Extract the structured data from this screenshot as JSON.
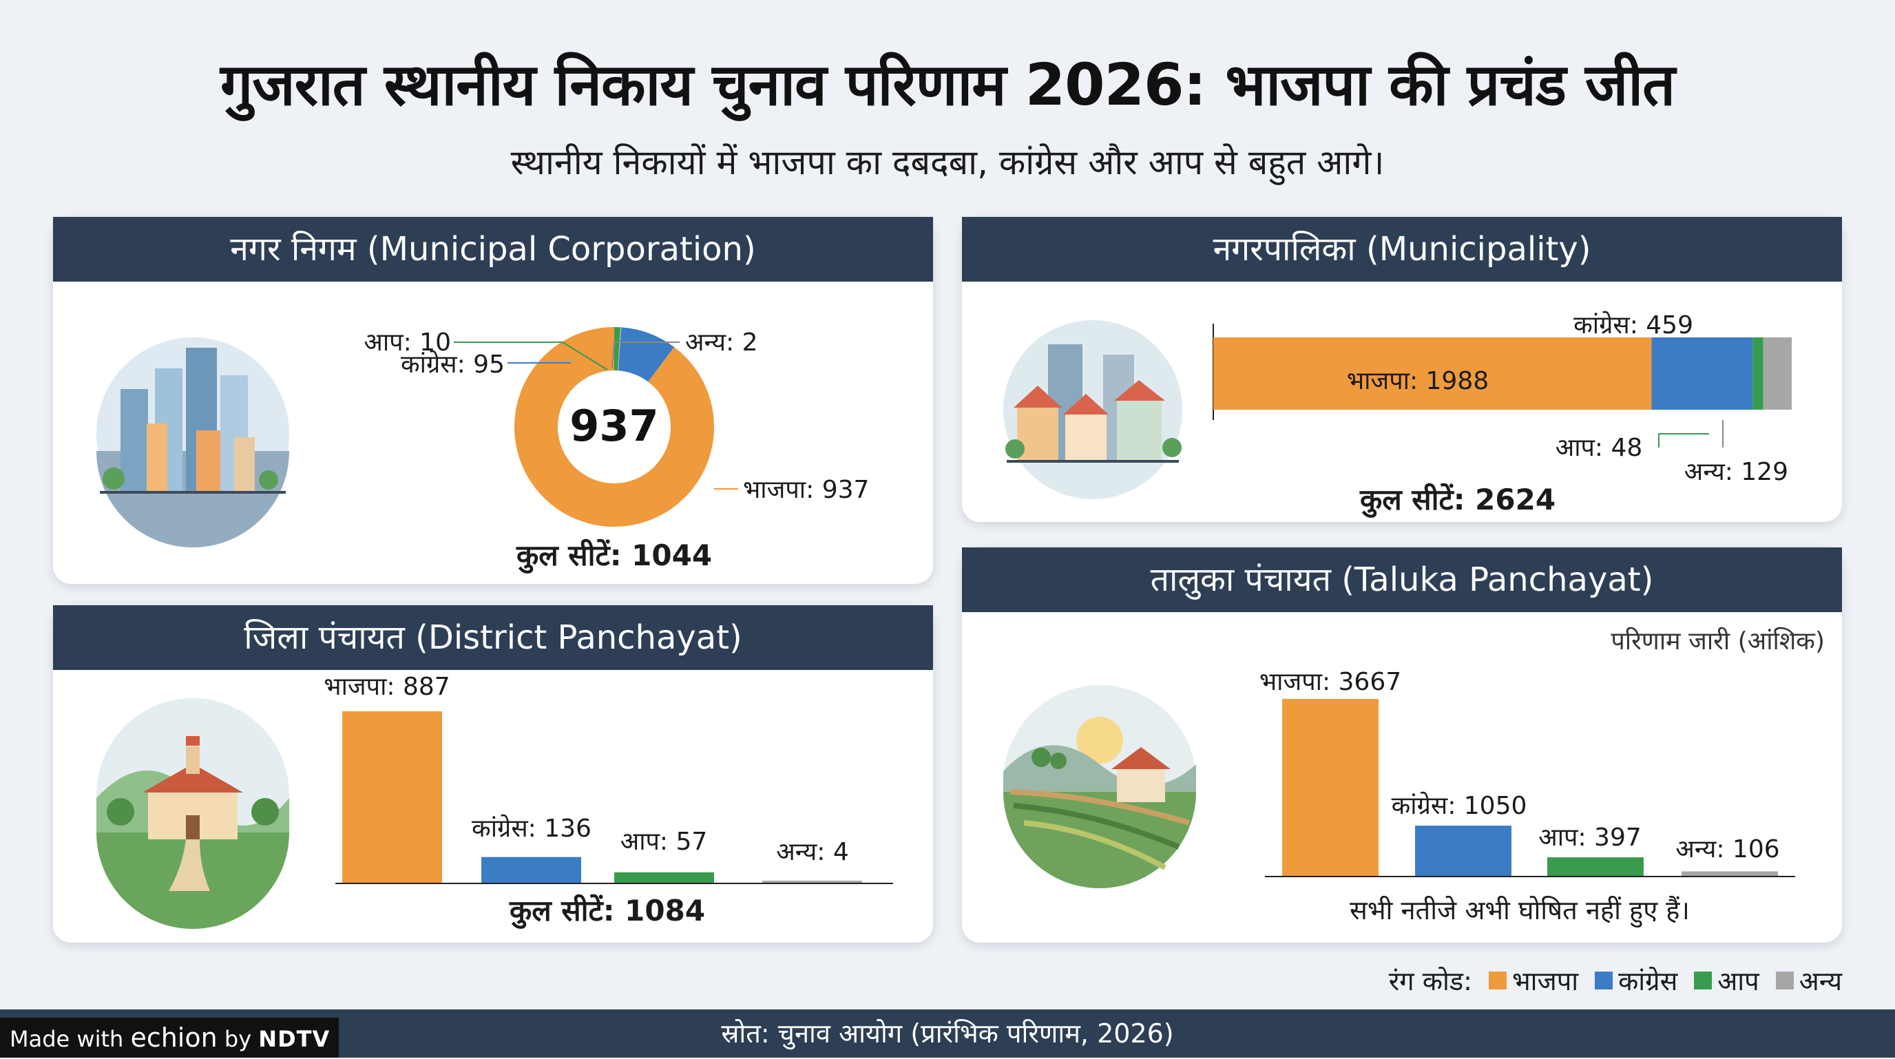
{
  "title": "गुजरात स्थानीय निकाय चुनाव परिणाम 2026: भाजपा की प्रचंड जीत",
  "subtitle": "स्थानीय निकायों में भाजपा का दबदबा, कांग्रेस और आप से बहुत आगे।",
  "colors": {
    "bjp": "#ef9a3c",
    "congress": "#3c7cc4",
    "aap": "#3a9a4e",
    "others": "#a7a7a7",
    "header": "#2d3e55"
  },
  "chart_data": [
    {
      "type": "pie",
      "variant": "donut",
      "title": "नगर निगम (Municipal Corporation)",
      "center_label": "937",
      "labels": [
        "आप",
        "अन्य",
        "कांग्रेस",
        "भाजपा"
      ],
      "slice_labels": [
        "आप: 10",
        "अन्य: 2",
        "कांग्रेस: 95",
        "भाजपा: 937"
      ],
      "values": [
        10,
        2,
        95,
        937
      ],
      "total_label": "कुल सीटें: 1044"
    },
    {
      "type": "bar",
      "variant": "stacked-horizontal",
      "title": "नगरपालिका (Municipality)",
      "categories": [
        "भाजपा",
        "कांग्रेस",
        "आप",
        "अन्य"
      ],
      "values": [
        1988,
        459,
        48,
        129
      ],
      "value_labels": [
        "भाजपा: 1988",
        "कांग्रेस: 459",
        "आप: 48",
        "अन्य: 129"
      ],
      "total_label": "कुल सीटें: 2624"
    },
    {
      "type": "bar",
      "title": "जिला पंचायत (District Panchayat)",
      "categories": [
        "भाजपा",
        "कांग्रेस",
        "आप",
        "अन्य"
      ],
      "values": [
        887,
        136,
        57,
        4
      ],
      "value_labels": [
        "भाजपा: 887",
        "कांग्रेस: 136",
        "आप: 57",
        "अन्य: 4"
      ],
      "total_label": "कुल सीटें: 1084"
    },
    {
      "type": "bar",
      "title": "तालुका पंचायत (Taluka Panchayat)",
      "status": "परिणाम जारी (आंशिक)",
      "categories": [
        "भाजपा",
        "कांग्रेस",
        "आप",
        "अन्य"
      ],
      "values": [
        3667,
        1050,
        397,
        106
      ],
      "value_labels": [
        "भाजपा: 3667",
        "कांग्रेस: 1050",
        "आप: 397",
        "अन्य: 106"
      ],
      "note": "सभी नतीजे अभी घोषित नहीं हुए हैं।"
    }
  ],
  "legend": {
    "label": "रंग कोड:",
    "items": [
      "भाजपा",
      "कांग्रेस",
      "आप",
      "अन्य"
    ]
  },
  "footer": {
    "source": "स्रोत: चुनाव आयोग (प्रारंभिक परिणाम, 2026)",
    "made_with": "Made with",
    "brand": "echion",
    "by": "by",
    "network": "NDTV"
  }
}
